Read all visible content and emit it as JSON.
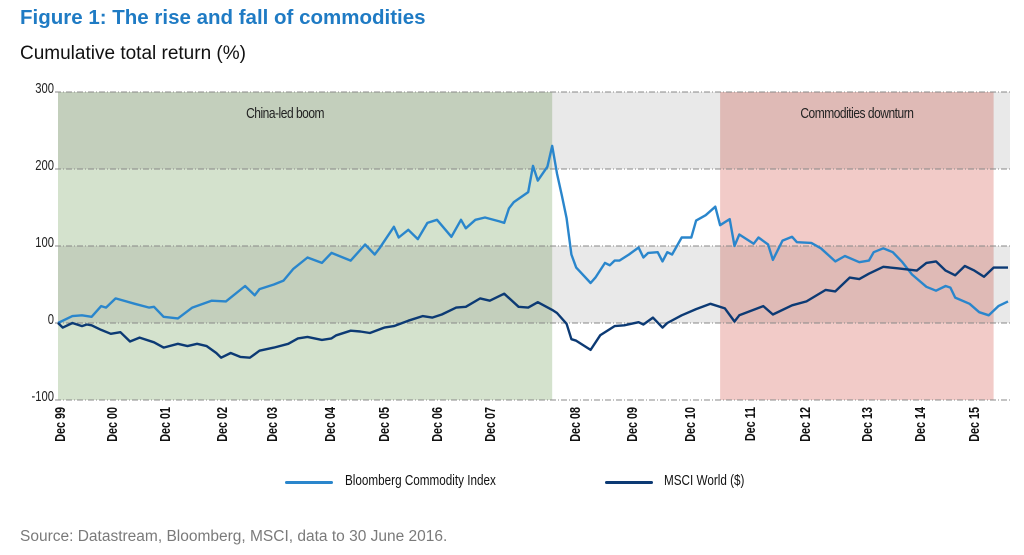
{
  "title": "Figure 1: The rise and fall of commodities",
  "subtitle": "Cumulative total return (%)",
  "source": "Source: Datastream, Bloomberg, MSCI, data to 30 June 2016.",
  "chart_data": {
    "type": "line",
    "title": "Figure 1: The rise and fall of commodities",
    "ylabel": "Cumulative total return (%)",
    "ylim": [
      -100,
      300
    ],
    "yticks": [
      300,
      200,
      100,
      0,
      -100
    ],
    "xlim": [
      "1999-12",
      "2016-06"
    ],
    "xticks": [
      "Dec 99",
      "Dec 00",
      "Dec 01",
      "Dec 02",
      "Dec 03",
      "Dec 04",
      "Dec 05",
      "Dec 06",
      "Dec 07",
      "Dec 08",
      "Dec 09",
      "Dec 10",
      "Dec 11",
      "Dec 12",
      "Dec 13",
      "Dec 14",
      "Dec 15"
    ],
    "grid": true,
    "legend": "bottom",
    "shaded_regions": [
      {
        "label": "China-led boom",
        "start": "1999-12",
        "end": "2008-07",
        "color": "#d4e2cd"
      },
      {
        "label": "",
        "start": "2008-07",
        "end": "2011-06",
        "color": "#e9e9e9"
      },
      {
        "label": "Commodities downturn",
        "start": "2011-06",
        "end": "2016-03",
        "color": "#f2cbc8"
      }
    ],
    "series": [
      {
        "name": "Bloomberg Commodity Index",
        "color": "#2a86cc",
        "points": [
          [
            "1999-12",
            0
          ],
          [
            "2000-03",
            9
          ],
          [
            "2000-05",
            10
          ],
          [
            "2000-07",
            8
          ],
          [
            "2000-09",
            22
          ],
          [
            "2000-10",
            20
          ],
          [
            "2000-12",
            32
          ],
          [
            "2001-04",
            25
          ],
          [
            "2001-07",
            20
          ],
          [
            "2001-08",
            21
          ],
          [
            "2001-10",
            8
          ],
          [
            "2002-01",
            6
          ],
          [
            "2002-04",
            20
          ],
          [
            "2002-08",
            29
          ],
          [
            "2002-11",
            28
          ],
          [
            "2003-03",
            48
          ],
          [
            "2003-05",
            36
          ],
          [
            "2003-06",
            44
          ],
          [
            "2003-09",
            50
          ],
          [
            "2003-11",
            55
          ],
          [
            "2004-01",
            70
          ],
          [
            "2004-04",
            85
          ],
          [
            "2004-07",
            78
          ],
          [
            "2004-09",
            91
          ],
          [
            "2005-01",
            81
          ],
          [
            "2005-04",
            102
          ],
          [
            "2005-06",
            89
          ],
          [
            "2005-07",
            97
          ],
          [
            "2005-10",
            125
          ],
          [
            "2005-11",
            111
          ],
          [
            "2006-01",
            121
          ],
          [
            "2006-03",
            109
          ],
          [
            "2006-05",
            130
          ],
          [
            "2006-07",
            134
          ],
          [
            "2006-10",
            112
          ],
          [
            "2006-12",
            134
          ],
          [
            "2007-01",
            123
          ],
          [
            "2007-03",
            134
          ],
          [
            "2007-05",
            137
          ],
          [
            "2007-08",
            132
          ],
          [
            "2007-09",
            130
          ],
          [
            "2007-10",
            149
          ],
          [
            "2007-11",
            157
          ],
          [
            "2008-02",
            170
          ],
          [
            "2008-03",
            204
          ],
          [
            "2008-04",
            185
          ],
          [
            "2008-06",
            203
          ],
          [
            "2008-07",
            230
          ],
          [
            "2008-08",
            194
          ],
          [
            "2008-09",
            166
          ],
          [
            "2008-10",
            136
          ],
          [
            "2008-11",
            89
          ],
          [
            "2008-12",
            72
          ],
          [
            "2009-03",
            52
          ],
          [
            "2009-04",
            59
          ],
          [
            "2009-06",
            78
          ],
          [
            "2009-07",
            75
          ],
          [
            "2009-08",
            81
          ],
          [
            "2009-09",
            81
          ],
          [
            "2009-11",
            89
          ],
          [
            "2010-01",
            98
          ],
          [
            "2010-02",
            85
          ],
          [
            "2010-03",
            91
          ],
          [
            "2010-05",
            92
          ],
          [
            "2010-06",
            80
          ],
          [
            "2010-07",
            92
          ],
          [
            "2010-08",
            89
          ],
          [
            "2010-10",
            111
          ],
          [
            "2010-12",
            111
          ],
          [
            "2011-01",
            133
          ],
          [
            "2011-03",
            140
          ],
          [
            "2011-05",
            151
          ],
          [
            "2011-06",
            127
          ],
          [
            "2011-08",
            135
          ],
          [
            "2011-09",
            100
          ],
          [
            "2011-10",
            115
          ],
          [
            "2012-01",
            103
          ],
          [
            "2012-02",
            111
          ],
          [
            "2012-04",
            102
          ],
          [
            "2012-05",
            82
          ],
          [
            "2012-07",
            107
          ],
          [
            "2012-09",
            112
          ],
          [
            "2012-10",
            105
          ],
          [
            "2013-01",
            104
          ],
          [
            "2013-03",
            97
          ],
          [
            "2013-06",
            80
          ],
          [
            "2013-08",
            87
          ],
          [
            "2013-11",
            79
          ],
          [
            "2014-01",
            81
          ],
          [
            "2014-02",
            92
          ],
          [
            "2014-04",
            97
          ],
          [
            "2014-06",
            92
          ],
          [
            "2014-08",
            79
          ],
          [
            "2014-10",
            63
          ],
          [
            "2015-01",
            47
          ],
          [
            "2015-03",
            42
          ],
          [
            "2015-05",
            48
          ],
          [
            "2015-06",
            46
          ],
          [
            "2015-07",
            33
          ],
          [
            "2015-10",
            25
          ],
          [
            "2015-12",
            14
          ],
          [
            "2016-02",
            10
          ],
          [
            "2016-04",
            22
          ],
          [
            "2016-06",
            28
          ]
        ]
      },
      {
        "name": "MSCI World ($)",
        "color": "#0c3a74",
        "points": [
          [
            "1999-12",
            0
          ],
          [
            "2000-01",
            -6
          ],
          [
            "2000-03",
            0
          ],
          [
            "2000-05",
            -4
          ],
          [
            "2000-06",
            -2
          ],
          [
            "2000-07",
            -3
          ],
          [
            "2000-09",
            -9
          ],
          [
            "2000-11",
            -14
          ],
          [
            "2001-01",
            -12
          ],
          [
            "2001-03",
            -24
          ],
          [
            "2001-05",
            -19
          ],
          [
            "2001-08",
            -25
          ],
          [
            "2001-10",
            -32
          ],
          [
            "2002-01",
            -27
          ],
          [
            "2002-03",
            -30
          ],
          [
            "2002-05",
            -27
          ],
          [
            "2002-07",
            -30
          ],
          [
            "2002-09",
            -39
          ],
          [
            "2002-10",
            -45
          ],
          [
            "2002-12",
            -39
          ],
          [
            "2003-02",
            -44
          ],
          [
            "2003-04",
            -45
          ],
          [
            "2003-06",
            -36
          ],
          [
            "2003-09",
            -32
          ],
          [
            "2003-12",
            -27
          ],
          [
            "2004-02",
            -20
          ],
          [
            "2004-04",
            -18
          ],
          [
            "2004-07",
            -22
          ],
          [
            "2004-09",
            -20
          ],
          [
            "2004-10",
            -16
          ],
          [
            "2005-01",
            -10
          ],
          [
            "2005-03",
            -11
          ],
          [
            "2005-05",
            -13
          ],
          [
            "2005-08",
            -6
          ],
          [
            "2005-10",
            -4
          ],
          [
            "2006-01",
            3
          ],
          [
            "2006-04",
            9
          ],
          [
            "2006-06",
            7
          ],
          [
            "2006-08",
            11
          ],
          [
            "2006-11",
            20
          ],
          [
            "2007-01",
            21
          ],
          [
            "2007-04",
            32
          ],
          [
            "2007-06",
            29
          ],
          [
            "2007-09",
            38
          ],
          [
            "2007-12",
            21
          ],
          [
            "2008-02",
            20
          ],
          [
            "2008-04",
            27
          ],
          [
            "2008-07",
            17
          ],
          [
            "2008-08",
            13
          ],
          [
            "2008-10",
            -1
          ],
          [
            "2008-11",
            -21
          ],
          [
            "2008-12",
            -23
          ],
          [
            "2009-03",
            -35
          ],
          [
            "2009-05",
            -16
          ],
          [
            "2009-08",
            -4
          ],
          [
            "2009-10",
            -3
          ],
          [
            "2010-01",
            1
          ],
          [
            "2010-02",
            -2
          ],
          [
            "2010-04",
            7
          ],
          [
            "2010-06",
            -6
          ],
          [
            "2010-07",
            0
          ],
          [
            "2010-10",
            10
          ],
          [
            "2011-01",
            18
          ],
          [
            "2011-04",
            25
          ],
          [
            "2011-07",
            19
          ],
          [
            "2011-09",
            2
          ],
          [
            "2011-10",
            10
          ],
          [
            "2012-03",
            22
          ],
          [
            "2012-05",
            11
          ],
          [
            "2012-09",
            23
          ],
          [
            "2012-12",
            28
          ],
          [
            "2013-04",
            43
          ],
          [
            "2013-06",
            41
          ],
          [
            "2013-09",
            59
          ],
          [
            "2013-11",
            57
          ],
          [
            "2014-01",
            64
          ],
          [
            "2014-04",
            73
          ],
          [
            "2014-07",
            71
          ],
          [
            "2014-11",
            68
          ],
          [
            "2015-01",
            78
          ],
          [
            "2015-03",
            80
          ],
          [
            "2015-05",
            68
          ],
          [
            "2015-07",
            62
          ],
          [
            "2015-09",
            74
          ],
          [
            "2015-11",
            68
          ],
          [
            "2016-01",
            60
          ],
          [
            "2016-03",
            72
          ],
          [
            "2016-06",
            72
          ]
        ]
      }
    ]
  }
}
